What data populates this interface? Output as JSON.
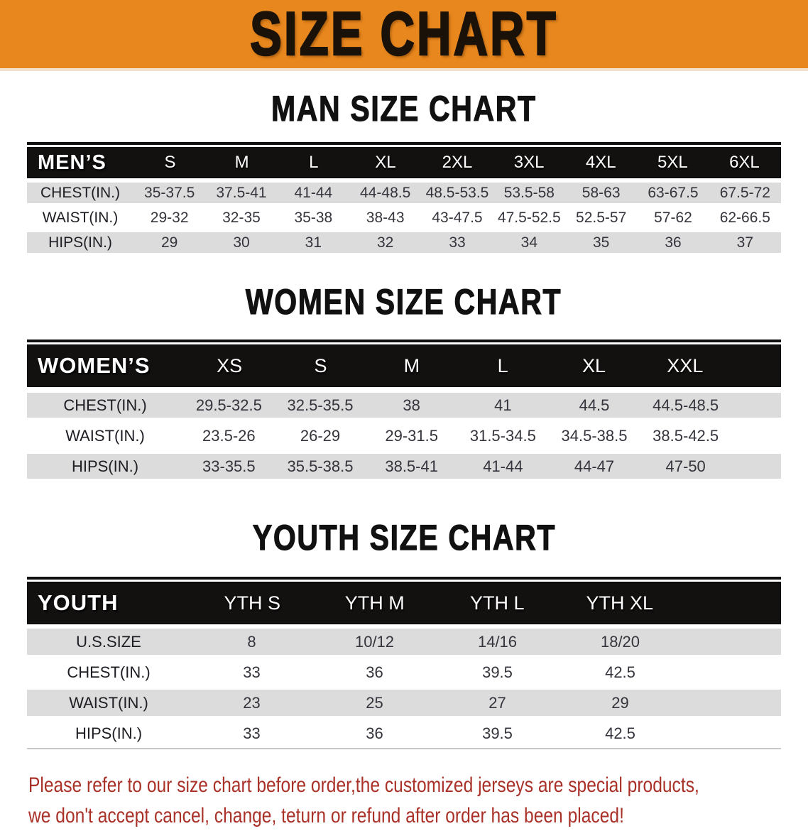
{
  "banner": {
    "title": "SIZE CHART"
  },
  "sections": [
    {
      "heading": "MAN SIZE CHART",
      "table": {
        "label": "MEN’S",
        "columns": [
          "S",
          "M",
          "L",
          "XL",
          "2XL",
          "3XL",
          "4XL",
          "5XL",
          "6XL"
        ],
        "rows": [
          {
            "label": "CHEST(IN.)",
            "values": [
              "35-37.5",
              "37.5-41",
              "41-44",
              "44-48.5",
              "48.5-53.5",
              "53.5-58",
              "58-63",
              "63-67.5",
              "67.5-72"
            ]
          },
          {
            "label": "WAIST(IN.)",
            "values": [
              "29-32",
              "32-35",
              "35-38",
              "38-43",
              "43-47.5",
              "47.5-52.5",
              "52.5-57",
              "57-62",
              "62-66.5"
            ]
          },
          {
            "label": "HIPS(IN.)",
            "values": [
              "29",
              "30",
              "31",
              "32",
              "33",
              "34",
              "35",
              "36",
              "37"
            ]
          }
        ]
      }
    },
    {
      "heading": "WOMEN SIZE CHART",
      "table": {
        "label": "WOMEN’S",
        "columns": [
          "XS",
          "S",
          "M",
          "L",
          "XL",
          "XXL"
        ],
        "rows": [
          {
            "label": "CHEST(IN.)",
            "values": [
              "29.5-32.5",
              "32.5-35.5",
              "38",
              "41",
              "44.5",
              "44.5-48.5"
            ]
          },
          {
            "label": "WAIST(IN.)",
            "values": [
              "23.5-26",
              "26-29",
              "29-31.5",
              "31.5-34.5",
              "34.5-38.5",
              "38.5-42.5"
            ]
          },
          {
            "label": "HIPS(IN.)",
            "values": [
              "33-35.5",
              "35.5-38.5",
              "38.5-41",
              "41-44",
              "44-47",
              "47-50"
            ]
          }
        ]
      }
    },
    {
      "heading": "YOUTH SIZE CHART",
      "table": {
        "label": "YOUTH",
        "columns": [
          "YTH S",
          "YTH M",
          "YTH L",
          "YTH XL"
        ],
        "rows": [
          {
            "label": "U.S.SIZE",
            "values": [
              "8",
              "10/12",
              "14/16",
              "18/20"
            ]
          },
          {
            "label": "CHEST(IN.)",
            "values": [
              "33",
              "36",
              "39.5",
              "42.5"
            ]
          },
          {
            "label": "WAIST(IN.)",
            "values": [
              "23",
              "25",
              "27",
              "29"
            ]
          },
          {
            "label": "HIPS(IN.)",
            "values": [
              "33",
              "36",
              "39.5",
              "42.5"
            ]
          }
        ]
      }
    }
  ],
  "footer": {
    "line1": "Please refer to our size chart before order,the customized jerseys are special products,",
    "line2": "we don't accept cancel, change, teturn or refund after order has been placed!"
  },
  "colors": {
    "banner_orange": "#E8871E",
    "header_black": "#131110",
    "row_gray": "#DCDCDC",
    "footer_red": "#A93128"
  }
}
